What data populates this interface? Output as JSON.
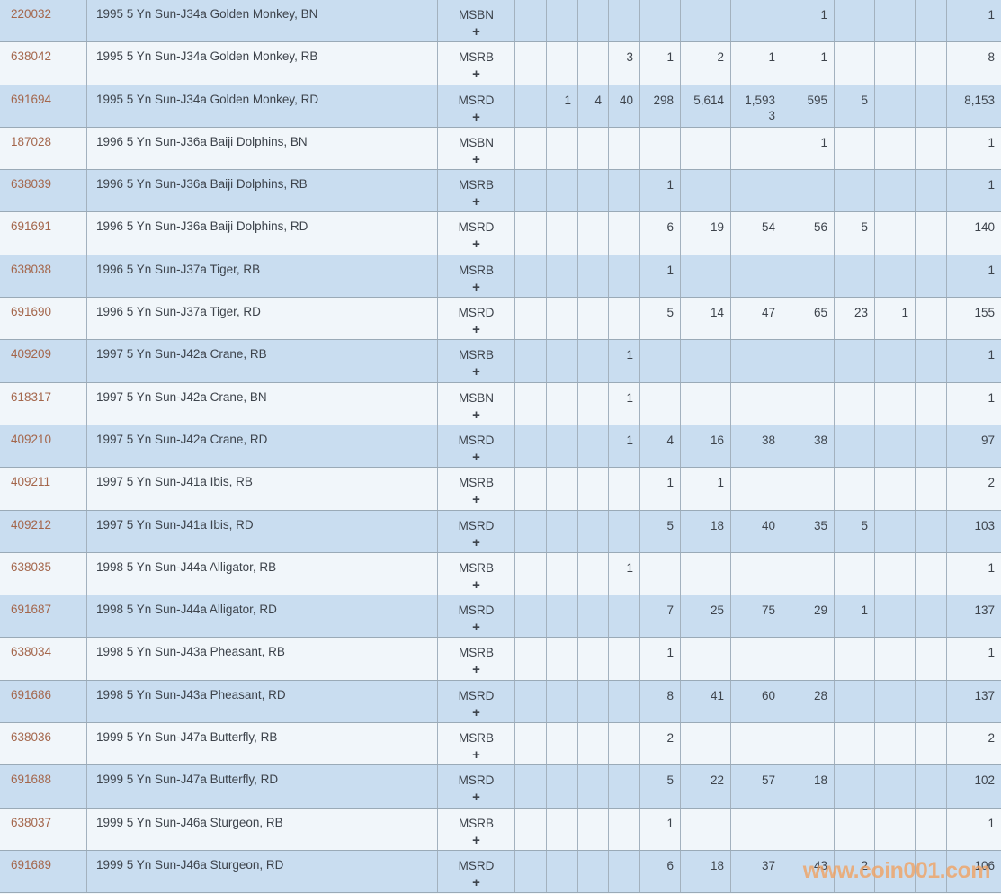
{
  "watermark": "www.coin001.com",
  "colors": {
    "row_blue": "#c9ddf0",
    "row_white": "#f1f6fa",
    "grid_border": "#9aaab7",
    "id_link_text": "#a4664b",
    "body_text": "#3d434b",
    "watermark_text": "#f0a364"
  },
  "table": {
    "plus_symbol": "+",
    "rows": [
      {
        "id": "220032",
        "description": "1995 5 Yn Sun-J34a Golden Monkey, BN",
        "designation": "MSBN",
        "grades": [
          "",
          "",
          "",
          "",
          "",
          "",
          "",
          "1",
          "",
          "",
          ""
        ],
        "total": "1"
      },
      {
        "id": "638042",
        "description": "1995 5 Yn Sun-J34a Golden Monkey, RB",
        "designation": "MSRB",
        "grades": [
          "",
          "",
          "",
          "3",
          "1",
          "2",
          "1",
          "1",
          "",
          "",
          ""
        ],
        "total": "8"
      },
      {
        "id": "691694",
        "description": "1995 5 Yn Sun-J34a Golden Monkey, RD",
        "designation": "MSRD",
        "grades": [
          "",
          "1",
          "4",
          "40",
          "298",
          "5,614",
          "1,593",
          "595",
          "5",
          "",
          ""
        ],
        "plus_grades": [
          "",
          "",
          "",
          "",
          "",
          "",
          "3",
          "",
          "",
          "",
          ""
        ],
        "total": "8,153"
      },
      {
        "id": "187028",
        "description": "1996 5 Yn Sun-J36a Baiji Dolphins, BN",
        "designation": "MSBN",
        "grades": [
          "",
          "",
          "",
          "",
          "",
          "",
          "",
          "1",
          "",
          "",
          ""
        ],
        "total": "1"
      },
      {
        "id": "638039",
        "description": "1996 5 Yn Sun-J36a Baiji Dolphins, RB",
        "designation": "MSRB",
        "grades": [
          "",
          "",
          "",
          "",
          "1",
          "",
          "",
          "",
          "",
          "",
          ""
        ],
        "total": "1"
      },
      {
        "id": "691691",
        "description": "1996 5 Yn Sun-J36a Baiji Dolphins, RD",
        "designation": "MSRD",
        "grades": [
          "",
          "",
          "",
          "",
          "6",
          "19",
          "54",
          "56",
          "5",
          "",
          ""
        ],
        "total": "140"
      },
      {
        "id": "638038",
        "description": "1996 5 Yn Sun-J37a Tiger, RB",
        "designation": "MSRB",
        "grades": [
          "",
          "",
          "",
          "",
          "1",
          "",
          "",
          "",
          "",
          "",
          ""
        ],
        "total": "1"
      },
      {
        "id": "691690",
        "description": "1996 5 Yn Sun-J37a Tiger, RD",
        "designation": "MSRD",
        "grades": [
          "",
          "",
          "",
          "",
          "5",
          "14",
          "47",
          "65",
          "23",
          "1",
          ""
        ],
        "total": "155"
      },
      {
        "id": "409209",
        "description": "1997 5 Yn Sun-J42a Crane, RB",
        "designation": "MSRB",
        "grades": [
          "",
          "",
          "",
          "1",
          "",
          "",
          "",
          "",
          "",
          "",
          ""
        ],
        "total": "1"
      },
      {
        "id": "618317",
        "description": "1997 5 Yn Sun-J42a Crane, BN",
        "designation": "MSBN",
        "grades": [
          "",
          "",
          "",
          "1",
          "",
          "",
          "",
          "",
          "",
          "",
          ""
        ],
        "total": "1"
      },
      {
        "id": "409210",
        "description": "1997 5 Yn Sun-J42a Crane, RD",
        "designation": "MSRD",
        "grades": [
          "",
          "",
          "",
          "1",
          "4",
          "16",
          "38",
          "38",
          "",
          "",
          ""
        ],
        "total": "97"
      },
      {
        "id": "409211",
        "description": "1997 5 Yn Sun-J41a Ibis, RB",
        "designation": "MSRB",
        "grades": [
          "",
          "",
          "",
          "",
          "1",
          "1",
          "",
          "",
          "",
          "",
          ""
        ],
        "total": "2"
      },
      {
        "id": "409212",
        "description": "1997 5 Yn Sun-J41a Ibis, RD",
        "designation": "MSRD",
        "grades": [
          "",
          "",
          "",
          "",
          "5",
          "18",
          "40",
          "35",
          "5",
          "",
          ""
        ],
        "total": "103"
      },
      {
        "id": "638035",
        "description": "1998 5 Yn Sun-J44a Alligator, RB",
        "designation": "MSRB",
        "grades": [
          "",
          "",
          "",
          "1",
          "",
          "",
          "",
          "",
          "",
          "",
          ""
        ],
        "total": "1"
      },
      {
        "id": "691687",
        "description": "1998 5 Yn Sun-J44a Alligator, RD",
        "designation": "MSRD",
        "grades": [
          "",
          "",
          "",
          "",
          "7",
          "25",
          "75",
          "29",
          "1",
          "",
          ""
        ],
        "total": "137"
      },
      {
        "id": "638034",
        "description": "1998 5 Yn Sun-J43a Pheasant, RB",
        "designation": "MSRB",
        "grades": [
          "",
          "",
          "",
          "",
          "1",
          "",
          "",
          "",
          "",
          "",
          ""
        ],
        "total": "1"
      },
      {
        "id": "691686",
        "description": "1998 5 Yn Sun-J43a Pheasant, RD",
        "designation": "MSRD",
        "grades": [
          "",
          "",
          "",
          "",
          "8",
          "41",
          "60",
          "28",
          "",
          "",
          ""
        ],
        "total": "137"
      },
      {
        "id": "638036",
        "description": "1999 5 Yn Sun-J47a Butterfly, RB",
        "designation": "MSRB",
        "grades": [
          "",
          "",
          "",
          "",
          "2",
          "",
          "",
          "",
          "",
          "",
          ""
        ],
        "total": "2"
      },
      {
        "id": "691688",
        "description": "1999 5 Yn Sun-J47a Butterfly, RD",
        "designation": "MSRD",
        "grades": [
          "",
          "",
          "",
          "",
          "5",
          "22",
          "57",
          "18",
          "",
          "",
          ""
        ],
        "total": "102"
      },
      {
        "id": "638037",
        "description": "1999 5 Yn Sun-J46a Sturgeon, RB",
        "designation": "MSRB",
        "grades": [
          "",
          "",
          "",
          "",
          "1",
          "",
          "",
          "",
          "",
          "",
          ""
        ],
        "total": "1"
      },
      {
        "id": "691689",
        "description": "1999 5 Yn Sun-J46a Sturgeon, RD",
        "designation": "MSRD",
        "grades": [
          "",
          "",
          "",
          "",
          "6",
          "18",
          "37",
          "43",
          "2",
          "",
          ""
        ],
        "total": "106"
      }
    ]
  }
}
